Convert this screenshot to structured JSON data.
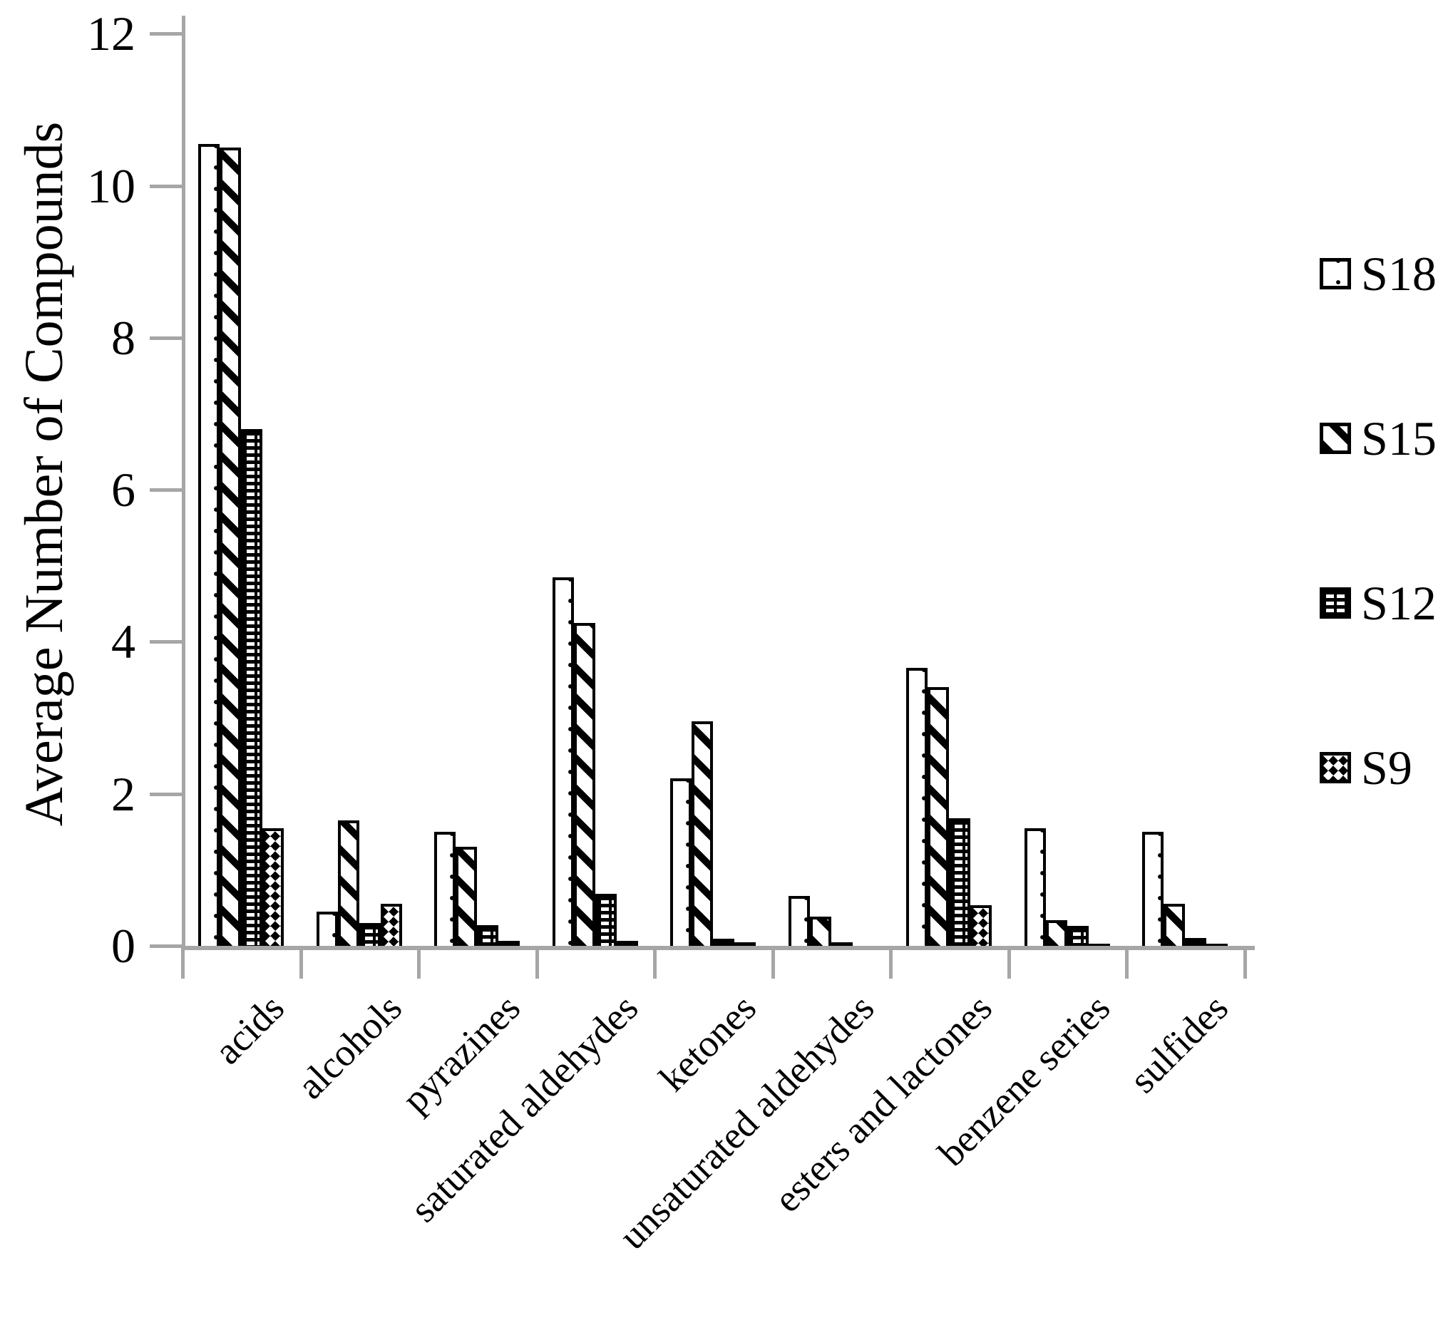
{
  "chart_data": {
    "type": "bar",
    "title": "",
    "ylabel": "Average Number of Compounds",
    "xlabel": "",
    "ylim": [
      0,
      12
    ],
    "yticks": [
      "0",
      "2",
      "4",
      "6",
      "8",
      "10",
      "12"
    ],
    "grid": "off",
    "legend_position": "right",
    "categories": [
      "acids",
      "alcohols",
      "pyrazines",
      "saturated aldehydes",
      "ketones",
      "unsaturated aldehydes",
      "esters and lactones",
      "benzene series",
      "sulfides"
    ],
    "series": [
      {
        "name": "S18",
        "pattern": "dots",
        "values": [
          10.55,
          0.45,
          1.5,
          4.85,
          2.2,
          0.66,
          3.66,
          1.55,
          1.5
        ]
      },
      {
        "name": "S15",
        "pattern": "diagonal-stripes",
        "values": [
          10.5,
          1.65,
          1.3,
          4.25,
          2.95,
          0.38,
          3.4,
          0.34,
          0.55
        ]
      },
      {
        "name": "S12",
        "pattern": "horizontal-dashes",
        "values": [
          6.8,
          0.3,
          0.27,
          0.68,
          0.09,
          0.05,
          1.68,
          0.26,
          0.1
        ]
      },
      {
        "name": "S9",
        "pattern": "checkerboard",
        "values": [
          1.55,
          0.55,
          0.07,
          0.07,
          0.05,
          0,
          0.53,
          0.03,
          0.02
        ]
      }
    ],
    "colors": {
      "foreground": "#000000",
      "axis": "#a6a6a6",
      "background": "#ffffff"
    }
  }
}
